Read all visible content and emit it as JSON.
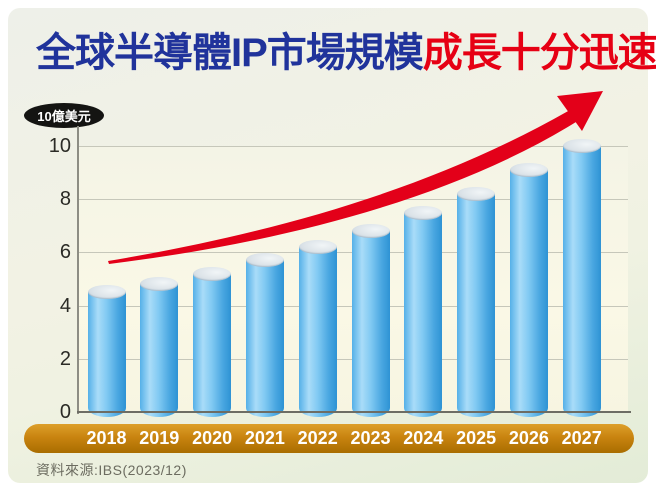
{
  "header": {
    "title_blue": "全球半導體IP市場規模",
    "title_red": "成長十分迅速"
  },
  "unit_badge": {
    "label": "10億美元"
  },
  "footer": {
    "source_label": "資料來源:IBS(2023/12)"
  },
  "colors": {
    "title_blue": "#20339b",
    "title_red": "#e60014",
    "arrow_red": "#e30019",
    "bar_blue": "#52ade4",
    "year_band_orange": "#b97c0a",
    "panel_green": "#e3ecd7"
  },
  "chart_data": {
    "type": "bar",
    "title": "全球半導體IP市場規模成長十分迅速",
    "ylabel": "10億美元",
    "xlabel": "",
    "categories": [
      "2018",
      "2019",
      "2020",
      "2021",
      "2022",
      "2023",
      "2024",
      "2025",
      "2026",
      "2027"
    ],
    "values": [
      4.5,
      4.8,
      5.2,
      5.7,
      6.2,
      6.8,
      7.5,
      8.2,
      9.1,
      10.0
    ],
    "yticks": [
      0,
      2,
      4,
      6,
      8,
      10
    ],
    "ylim": [
      0,
      10
    ],
    "grid": true,
    "legend": false,
    "bar_style": "3d-cylinder",
    "annotation": "red upward growth arrow",
    "source": "IBS(2023/12)"
  }
}
